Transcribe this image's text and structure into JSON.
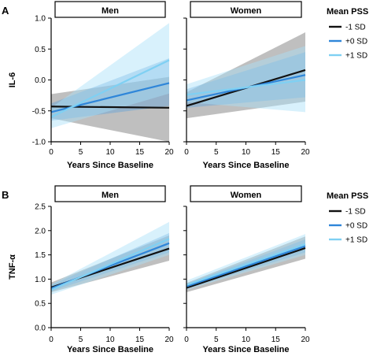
{
  "colors": {
    "minus1": "#111111",
    "zero": "#2f86d9",
    "plus1": "#7fd0f3",
    "band_minus1": "#8a8a8a",
    "band_zero": "#5a9fdc",
    "band_plus1": "#a9e1f8"
  },
  "chart_data": [
    {
      "type": "line",
      "panel": "A",
      "ylabel": "IL-6",
      "ylim": [
        -1.0,
        1.0
      ],
      "yticks": [
        "-1.0",
        "-0.5",
        "0.0",
        "0.5",
        "1.0"
      ],
      "xlim": [
        0,
        20
      ],
      "xticks": [
        "0",
        "5",
        "10",
        "15",
        "20"
      ],
      "legend": {
        "title": "Mean PSS",
        "entries": [
          "-1 SD",
          "+0 SD",
          "+1 SD"
        ]
      },
      "facets": [
        {
          "label": "Men",
          "xlabel": "Years Since Baseline",
          "series": [
            {
              "name": "-1 SD",
              "x": [
                0,
                20
              ],
              "y": [
                -0.43,
                -0.45
              ],
              "lower": [
                -0.62,
                -1.0
              ],
              "upper": [
                -0.23,
                0.05
              ]
            },
            {
              "name": "+0 SD",
              "x": [
                0,
                20
              ],
              "y": [
                -0.52,
                -0.05
              ],
              "lower": [
                -0.66,
                -0.42
              ],
              "upper": [
                -0.38,
                0.35
              ]
            },
            {
              "name": "+1 SD",
              "x": [
                0,
                20
              ],
              "y": [
                -0.6,
                0.32
              ],
              "lower": [
                -0.78,
                -0.22
              ],
              "upper": [
                -0.45,
                0.92
              ]
            }
          ]
        },
        {
          "label": "Women",
          "xlabel": "Years Since Baseline",
          "series": [
            {
              "name": "-1 SD",
              "x": [
                0,
                20
              ],
              "y": [
                -0.42,
                0.16
              ],
              "lower": [
                -0.62,
                -0.35
              ],
              "upper": [
                -0.2,
                0.77
              ]
            },
            {
              "name": "+0 SD",
              "x": [
                0,
                20
              ],
              "y": [
                -0.33,
                0.08
              ],
              "lower": [
                -0.45,
                -0.28
              ],
              "upper": [
                -0.15,
                0.45
              ]
            },
            {
              "name": "+1 SD",
              "x": [
                0,
                20
              ],
              "y": [
                -0.24,
                0.0
              ],
              "lower": [
                -0.36,
                -0.52
              ],
              "upper": [
                -0.07,
                0.55
              ]
            }
          ]
        }
      ]
    },
    {
      "type": "line",
      "panel": "B",
      "ylabel": "TNF-α",
      "ylim": [
        0.0,
        2.5
      ],
      "yticks": [
        "0.0",
        "0.5",
        "1.0",
        "1.5",
        "2.0",
        "2.5"
      ],
      "xlim": [
        0,
        20
      ],
      "xticks": [
        "0",
        "5",
        "10",
        "15",
        "20"
      ],
      "legend": {
        "title": "Mean PSS",
        "entries": [
          "-1 SD",
          "+0 SD",
          "+1 SD"
        ]
      },
      "facets": [
        {
          "label": "Men",
          "xlabel": "Years Since Baseline",
          "series": [
            {
              "name": "-1 SD",
              "x": [
                0,
                20
              ],
              "y": [
                0.83,
                1.63
              ],
              "lower": [
                0.73,
                1.38
              ],
              "upper": [
                0.93,
                1.9
              ]
            },
            {
              "name": "+0 SD",
              "x": [
                0,
                20
              ],
              "y": [
                0.81,
                1.74
              ],
              "lower": [
                0.75,
                1.55
              ],
              "upper": [
                0.88,
                1.95
              ]
            },
            {
              "name": "+1 SD",
              "x": [
                0,
                20
              ],
              "y": [
                0.78,
                1.83
              ],
              "lower": [
                0.68,
                1.5
              ],
              "upper": [
                0.89,
                2.18
              ]
            }
          ]
        },
        {
          "label": "Women",
          "xlabel": "Years Since Baseline",
          "series": [
            {
              "name": "-1 SD",
              "x": [
                0,
                20
              ],
              "y": [
                0.82,
                1.64
              ],
              "lower": [
                0.73,
                1.42
              ],
              "upper": [
                0.92,
                1.88
              ]
            },
            {
              "name": "+0 SD",
              "x": [
                0,
                20
              ],
              "y": [
                0.85,
                1.68
              ],
              "lower": [
                0.8,
                1.55
              ],
              "upper": [
                0.9,
                1.82
              ]
            },
            {
              "name": "+1 SD",
              "x": [
                0,
                20
              ],
              "y": [
                0.88,
                1.72
              ],
              "lower": [
                0.78,
                1.5
              ],
              "upper": [
                0.97,
                1.93
              ]
            }
          ]
        }
      ]
    }
  ]
}
